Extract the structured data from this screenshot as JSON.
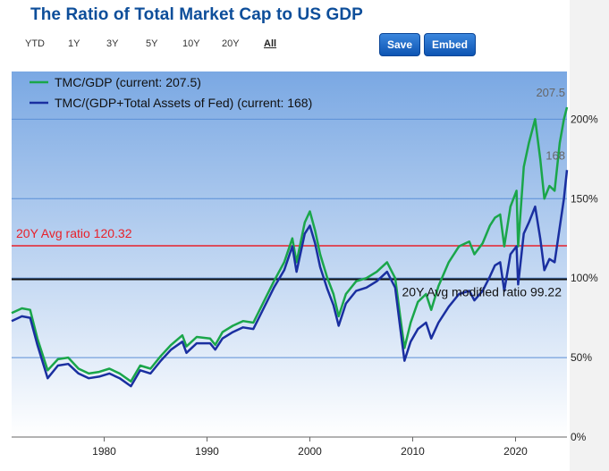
{
  "page": {
    "title": "The Ratio of Total Market Cap to US GDP",
    "ranges": [
      "YTD",
      "1Y",
      "3Y",
      "5Y",
      "10Y",
      "20Y",
      "All"
    ],
    "active_range": "All",
    "save_label": "Save",
    "embed_label": "Embed"
  },
  "colors": {
    "series1": "#1aa64a",
    "series2": "#1a2fa0",
    "avg_line": "#e8212a",
    "modified_avg_line": "#111111",
    "bg_top": "#7aa8e3",
    "bg_bottom": "#ffffff",
    "grid": "#5b8fd6",
    "accent": "#0d4e9a"
  },
  "chart_data": {
    "type": "line",
    "title": "The Ratio of Total Market Cap to US GDP",
    "xlim": [
      1971,
      2025
    ],
    "ylim": [
      0,
      230
    ],
    "x_ticks": [
      1980,
      1990,
      2000,
      2010,
      2020
    ],
    "y_ticks": [
      0,
      50,
      100,
      150,
      200
    ],
    "y_tick_labels": [
      "0%",
      "50%",
      "100%",
      "150%",
      "200%"
    ],
    "legend_position": "top-left",
    "series": [
      {
        "name": "TMC/GDP",
        "legend_label": "TMC/GDP (current: 207.5)",
        "current_label": "207.5",
        "points": [
          [
            1971,
            78
          ],
          [
            1972,
            81
          ],
          [
            1972.8,
            80
          ],
          [
            1973.5,
            62
          ],
          [
            1974.5,
            42
          ],
          [
            1975.5,
            49
          ],
          [
            1976.5,
            50
          ],
          [
            1977.5,
            43
          ],
          [
            1978.5,
            40
          ],
          [
            1979.5,
            41
          ],
          [
            1980.5,
            43
          ],
          [
            1981.5,
            40
          ],
          [
            1982.6,
            35
          ],
          [
            1983.5,
            45
          ],
          [
            1984.5,
            43
          ],
          [
            1985.5,
            51
          ],
          [
            1986.5,
            58
          ],
          [
            1987.6,
            64
          ],
          [
            1988,
            57
          ],
          [
            1989,
            63
          ],
          [
            1990.3,
            62
          ],
          [
            1990.8,
            58
          ],
          [
            1991.5,
            66
          ],
          [
            1992.5,
            70
          ],
          [
            1993.5,
            73
          ],
          [
            1994.5,
            72
          ],
          [
            1995.5,
            85
          ],
          [
            1996.5,
            98
          ],
          [
            1997.5,
            110
          ],
          [
            1998.3,
            125
          ],
          [
            1998.7,
            110
          ],
          [
            1999.5,
            135
          ],
          [
            2000,
            142
          ],
          [
            2000.5,
            130
          ],
          [
            2001,
            115
          ],
          [
            2001.7,
            100
          ],
          [
            2002.3,
            90
          ],
          [
            2002.8,
            76
          ],
          [
            2003.5,
            90
          ],
          [
            2004.5,
            98
          ],
          [
            2005.5,
            100
          ],
          [
            2006.5,
            104
          ],
          [
            2007.5,
            110
          ],
          [
            2008.3,
            100
          ],
          [
            2008.8,
            75
          ],
          [
            2009.2,
            56
          ],
          [
            2009.8,
            72
          ],
          [
            2010.5,
            85
          ],
          [
            2011.3,
            90
          ],
          [
            2011.8,
            80
          ],
          [
            2012.5,
            95
          ],
          [
            2013.5,
            110
          ],
          [
            2014.5,
            120
          ],
          [
            2015.5,
            123
          ],
          [
            2016,
            115
          ],
          [
            2016.8,
            122
          ],
          [
            2017.5,
            133
          ],
          [
            2018,
            138
          ],
          [
            2018.5,
            140
          ],
          [
            2018.9,
            120
          ],
          [
            2019.5,
            145
          ],
          [
            2020.1,
            155
          ],
          [
            2020.25,
            120
          ],
          [
            2020.8,
            170
          ],
          [
            2021.3,
            185
          ],
          [
            2021.9,
            200
          ],
          [
            2022.4,
            175
          ],
          [
            2022.8,
            150
          ],
          [
            2023.3,
            158
          ],
          [
            2023.8,
            155
          ],
          [
            2024.3,
            185
          ],
          [
            2024.7,
            200
          ],
          [
            2025,
            207.5
          ]
        ]
      },
      {
        "name": "TMC/(GDP+Total Assets of Fed)",
        "legend_label": "TMC/(GDP+Total Assets of Fed) (current: 168)",
        "current_label": "168",
        "points": [
          [
            1971,
            73
          ],
          [
            1972,
            76
          ],
          [
            1972.8,
            75
          ],
          [
            1973.5,
            58
          ],
          [
            1974.5,
            37
          ],
          [
            1975.5,
            45
          ],
          [
            1976.5,
            46
          ],
          [
            1977.5,
            40
          ],
          [
            1978.5,
            37
          ],
          [
            1979.5,
            38
          ],
          [
            1980.5,
            40
          ],
          [
            1981.5,
            37
          ],
          [
            1982.6,
            32
          ],
          [
            1983.5,
            42
          ],
          [
            1984.5,
            40
          ],
          [
            1985.5,
            48
          ],
          [
            1986.5,
            55
          ],
          [
            1987.6,
            60
          ],
          [
            1988,
            53
          ],
          [
            1989,
            59
          ],
          [
            1990.3,
            59
          ],
          [
            1990.8,
            55
          ],
          [
            1991.5,
            62
          ],
          [
            1992.5,
            66
          ],
          [
            1993.5,
            69
          ],
          [
            1994.5,
            68
          ],
          [
            1995.5,
            81
          ],
          [
            1996.5,
            94
          ],
          [
            1997.5,
            105
          ],
          [
            1998.3,
            120
          ],
          [
            1998.7,
            104
          ],
          [
            1999.5,
            128
          ],
          [
            2000,
            133
          ],
          [
            2000.5,
            122
          ],
          [
            2001,
            107
          ],
          [
            2001.7,
            93
          ],
          [
            2002.3,
            83
          ],
          [
            2002.8,
            70
          ],
          [
            2003.5,
            84
          ],
          [
            2004.5,
            92
          ],
          [
            2005.5,
            94
          ],
          [
            2006.5,
            98
          ],
          [
            2007.5,
            104
          ],
          [
            2008.3,
            94
          ],
          [
            2008.8,
            68
          ],
          [
            2009.2,
            48
          ],
          [
            2009.8,
            60
          ],
          [
            2010.5,
            68
          ],
          [
            2011.3,
            72
          ],
          [
            2011.8,
            62
          ],
          [
            2012.5,
            72
          ],
          [
            2013.5,
            82
          ],
          [
            2014.5,
            90
          ],
          [
            2015.5,
            92
          ],
          [
            2016,
            86
          ],
          [
            2016.8,
            92
          ],
          [
            2017.5,
            101
          ],
          [
            2018,
            108
          ],
          [
            2018.5,
            110
          ],
          [
            2018.9,
            92
          ],
          [
            2019.5,
            115
          ],
          [
            2020.1,
            120
          ],
          [
            2020.25,
            96
          ],
          [
            2020.8,
            128
          ],
          [
            2021.3,
            135
          ],
          [
            2021.9,
            145
          ],
          [
            2022.4,
            125
          ],
          [
            2022.8,
            105
          ],
          [
            2023.3,
            112
          ],
          [
            2023.8,
            110
          ],
          [
            2024.3,
            132
          ],
          [
            2024.7,
            150
          ],
          [
            2025,
            168
          ]
        ]
      }
    ],
    "annotations": [
      {
        "label": "20Y Avg ratio 120.32",
        "y": 120.32,
        "color_key": "avg_line"
      },
      {
        "label": "20Y Avg modified ratio 99.22",
        "y": 99.22,
        "color_key": "modified_avg_line"
      }
    ]
  }
}
